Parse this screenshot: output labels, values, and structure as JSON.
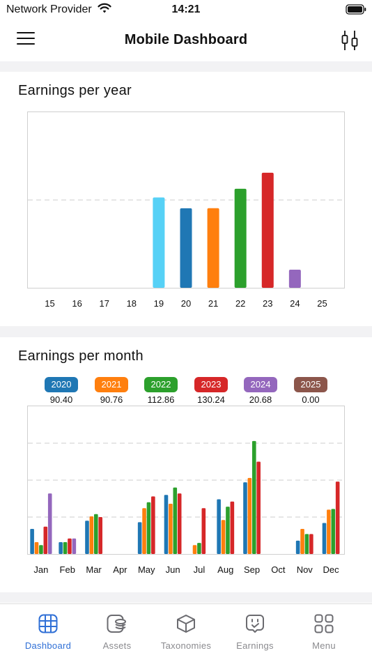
{
  "status_bar": {
    "carrier": "Network Provider",
    "time": "14:21"
  },
  "header": {
    "title": "Mobile Dashboard"
  },
  "earnings_per_year": {
    "title": "Earnings per year",
    "chart_data": {
      "type": "bar",
      "title": "Earnings per year",
      "categories": [
        "15",
        "16",
        "17",
        "18",
        "19",
        "20",
        "21",
        "22",
        "23",
        "24",
        "25"
      ],
      "values": [
        0,
        0,
        0,
        0,
        128.6,
        113.2,
        113.4,
        141.0,
        163.8,
        25.8,
        0
      ],
      "colors": [
        "#56d1f6",
        "#56d1f6",
        "#56d1f6",
        "#56d1f6",
        "#56d1f6",
        "#1f77b4",
        "#ff7f0e",
        "#2ca02c",
        "#d62728",
        "#9467bd",
        "#8c564b"
      ],
      "ylim": [
        0,
        250
      ],
      "grid": "dashed horizontal",
      "ytick_labels_shown": false
    }
  },
  "earnings_per_month": {
    "title": "Earnings per month",
    "legend": [
      {
        "year": "2020",
        "total": "90.40",
        "color": "#1f77b4"
      },
      {
        "year": "2021",
        "total": "90.76",
        "color": "#ff7f0e"
      },
      {
        "year": "2022",
        "total": "112.86",
        "color": "#2ca02c"
      },
      {
        "year": "2023",
        "total": "130.24",
        "color": "#d62728"
      },
      {
        "year": "2024",
        "total": "20.68",
        "color": "#9467bd"
      },
      {
        "year": "2025",
        "total": "0.00",
        "color": "#8c564b"
      }
    ],
    "chart_data": {
      "type": "bar",
      "title": "Earnings per month",
      "categories": [
        "Jan",
        "Feb",
        "Mar",
        "Apr",
        "May",
        "Jun",
        "Jul",
        "Aug",
        "Sep",
        "Oct",
        "Nov",
        "Dec"
      ],
      "ylim": [
        0,
        20
      ],
      "grid": "dashed horizontal",
      "ytick_labels_shown": false,
      "series": [
        {
          "name": "2020",
          "color": "#1f77b4",
          "values": [
            3.4,
            1.6,
            4.5,
            0,
            4.3,
            8.0,
            0,
            7.4,
            9.7,
            0,
            1.8,
            4.2
          ]
        },
        {
          "name": "2021",
          "color": "#ff7f0e",
          "values": [
            1.6,
            0,
            5.1,
            0,
            6.2,
            6.8,
            1.2,
            4.6,
            10.3,
            0,
            3.4,
            6.0
          ]
        },
        {
          "name": "2022",
          "color": "#2ca02c",
          "values": [
            1.2,
            1.6,
            5.4,
            0,
            7.0,
            9.0,
            1.5,
            6.4,
            15.3,
            0,
            2.7,
            6.1
          ]
        },
        {
          "name": "2023",
          "color": "#d62728",
          "values": [
            3.7,
            2.1,
            5.0,
            0,
            7.8,
            8.2,
            6.2,
            7.1,
            12.5,
            0,
            2.7,
            9.8
          ]
        },
        {
          "name": "2024",
          "color": "#9467bd",
          "values": [
            8.2,
            2.1,
            0,
            0,
            0,
            0,
            0,
            0,
            0,
            0,
            0,
            0
          ]
        },
        {
          "name": "2025",
          "color": "#8c564b",
          "values": [
            0,
            0,
            0,
            0,
            0,
            0,
            0,
            0,
            0,
            0,
            0,
            0
          ]
        }
      ]
    }
  },
  "tab_bar": {
    "tabs": [
      {
        "label": "Dashboard",
        "icon": "grid-icon",
        "active": true
      },
      {
        "label": "Assets",
        "icon": "coins-icon",
        "active": false
      },
      {
        "label": "Taxonomies",
        "icon": "cube-icon",
        "active": false
      },
      {
        "label": "Earnings",
        "icon": "chat-check-icon",
        "active": false
      },
      {
        "label": "Menu",
        "icon": "apps-icon",
        "active": false
      }
    ]
  }
}
